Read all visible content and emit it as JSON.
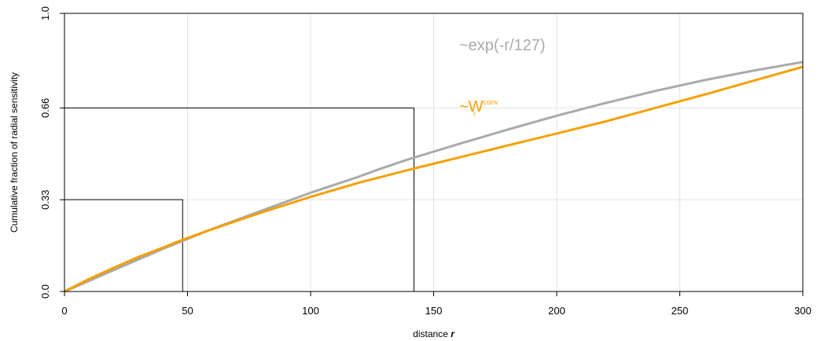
{
  "chart_data": {
    "type": "line",
    "xlabel": "distance",
    "xlabel_symbol": "r",
    "ylabel": "Cumulative fraction of radial sensitivity",
    "xlim": [
      0,
      300
    ],
    "ylim": [
      0,
      1
    ],
    "x_ticks": [
      0,
      50,
      100,
      150,
      200,
      250,
      300
    ],
    "y_ticks": [
      {
        "value": 0.0,
        "label": "0.0"
      },
      {
        "value": 0.33,
        "label": "0.33"
      },
      {
        "value": 0.66,
        "label": "0.66"
      },
      {
        "value": 1.0,
        "label": "1.0"
      }
    ],
    "grid": true,
    "series": [
      {
        "name": "~exp(-r/127)",
        "color": "#aaaaaa",
        "x": [
          0,
          10,
          20,
          30,
          40,
          48,
          60,
          80,
          100,
          120,
          128,
          140,
          160,
          180,
          200,
          220,
          240,
          260,
          280,
          300
        ],
        "y": [
          0.0,
          0.038,
          0.077,
          0.115,
          0.153,
          0.182,
          0.225,
          0.29,
          0.355,
          0.414,
          0.44,
          0.476,
          0.53,
          0.582,
          0.632,
          0.678,
          0.721,
          0.76,
          0.794,
          0.825
        ]
      },
      {
        "name_main": "~W",
        "name_sub": "r",
        "name_sup": "conv",
        "color": "#f5a000",
        "x": [
          0,
          10,
          20,
          30,
          40,
          48,
          60,
          80,
          100,
          120,
          142,
          160,
          180,
          200,
          220,
          240,
          260,
          280,
          300
        ],
        "y": [
          0.0,
          0.045,
          0.085,
          0.124,
          0.158,
          0.186,
          0.224,
          0.284,
          0.34,
          0.392,
          0.442,
          0.481,
          0.525,
          0.568,
          0.612,
          0.66,
          0.708,
          0.758,
          0.808
        ]
      }
    ],
    "reference_lines": [
      {
        "x": 48,
        "y": 0.33
      },
      {
        "x": 142,
        "y": 0.66
      }
    ]
  }
}
